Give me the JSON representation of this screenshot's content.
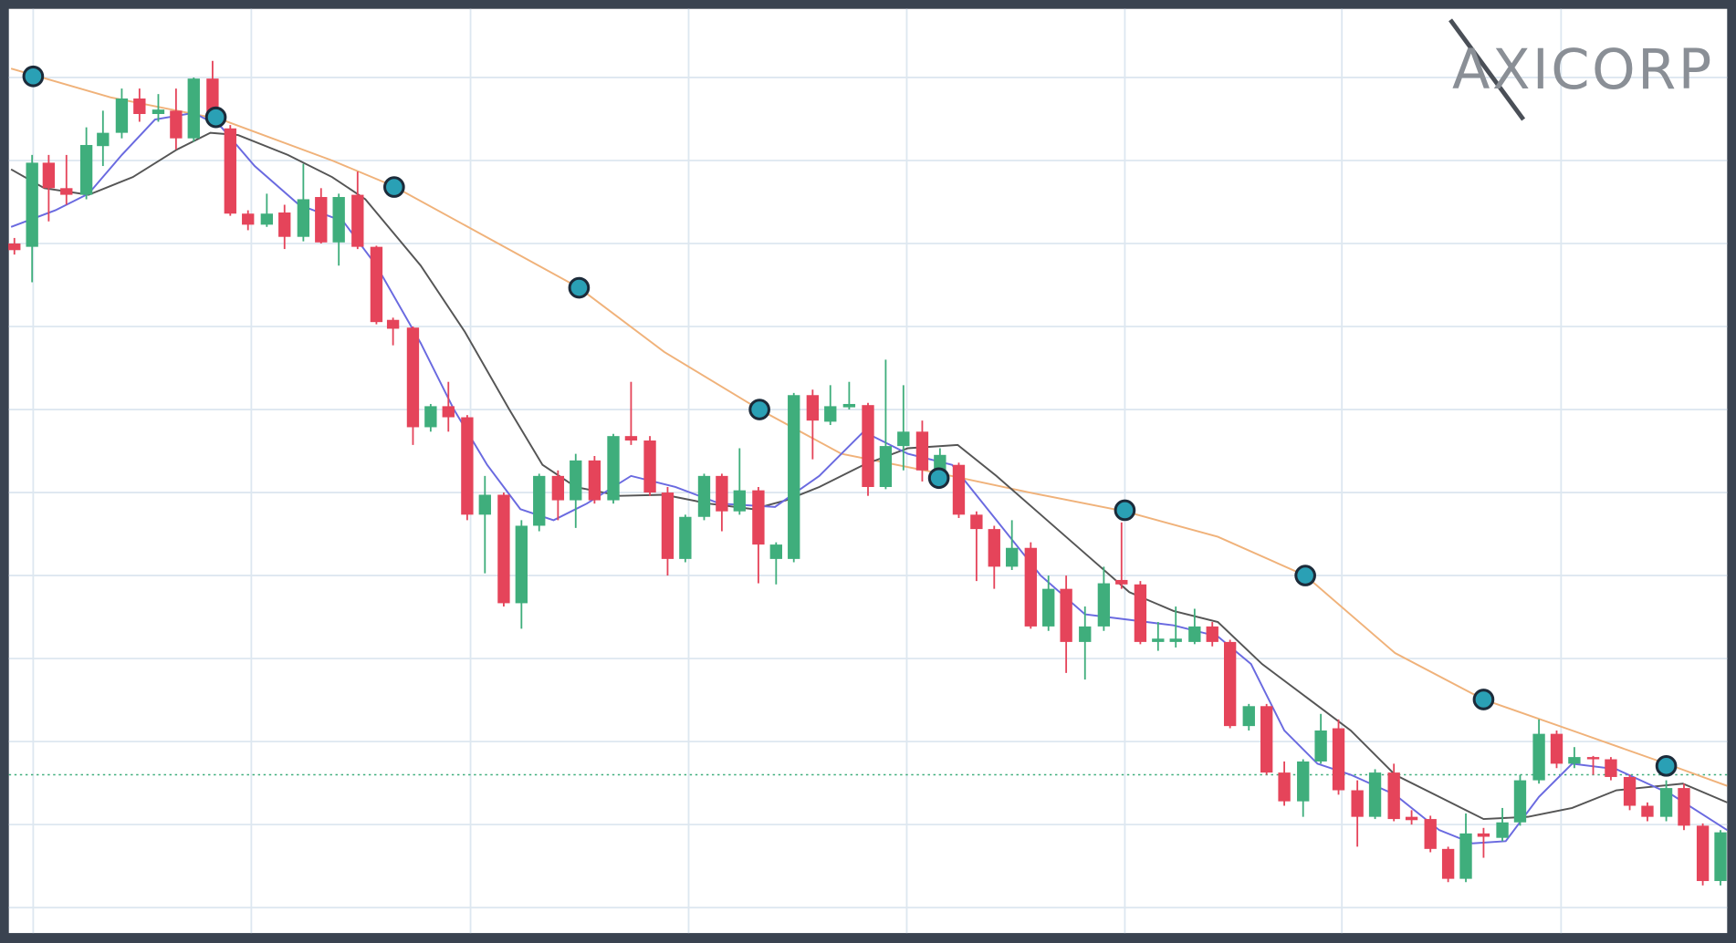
{
  "chart_data": {
    "type": "candlestick",
    "logo": "AXICORP",
    "xlim": [
      0,
      1568
    ],
    "ylim": [
      0,
      852
    ],
    "xticks": [
      30,
      227,
      425,
      622,
      819,
      1016,
      1212,
      1410
    ],
    "yticks": [
      32,
      107,
      182,
      257,
      332,
      407,
      482,
      557,
      632,
      707,
      782
    ],
    "grid": true,
    "up_color": "#3fae7c",
    "down_color": "#e5445a",
    "x": [
      13,
      29,
      44,
      60,
      78,
      93,
      110,
      126,
      143,
      159,
      175,
      192,
      208,
      224,
      241,
      257,
      274,
      290,
      306,
      323,
      340,
      355,
      373,
      389,
      405,
      422,
      438,
      455,
      471,
      487,
      504,
      520,
      537,
      554,
      570,
      587,
      603,
      619,
      636,
      652,
      668,
      685,
      701,
      717,
      734,
      750,
      767,
      784,
      800,
      816,
      833,
      849,
      866,
      882,
      898,
      914,
      931,
      947,
      963,
      980,
      997,
      1013,
      1030,
      1046,
      1062,
      1079,
      1095,
      1111,
      1128,
      1144,
      1160,
      1177,
      1193,
      1209,
      1226,
      1242,
      1259,
      1275,
      1292,
      1308,
      1324,
      1340,
      1357,
      1373,
      1390,
      1406,
      1422,
      1439,
      1455,
      1472,
      1488,
      1505,
      1521,
      1538,
      1554
    ],
    "open": [
      632,
      629,
      705,
      682,
      676,
      720,
      732,
      763,
      749,
      752,
      727,
      781,
      736,
      659,
      649,
      660,
      638,
      674,
      633,
      676,
      629,
      563,
      556,
      466,
      485,
      475,
      387,
      405,
      307,
      377,
      422,
      400,
      436,
      400,
      458,
      454,
      407,
      347,
      385,
      422,
      390,
      409,
      347,
      347,
      495,
      471,
      484,
      486,
      412,
      449,
      462,
      427,
      432,
      387,
      374,
      340,
      357,
      286,
      320,
      272,
      286,
      328,
      324,
      272,
      272,
      272,
      286,
      272,
      196,
      214,
      154,
      128,
      164,
      194,
      138,
      114,
      154,
      114,
      112,
      85,
      58,
      99,
      95,
      109,
      147,
      189,
      162,
      168,
      166,
      150,
      124,
      114,
      140,
      106,
      56
    ],
    "high": [
      637,
      712,
      712,
      712,
      737,
      752,
      772,
      772,
      767,
      772,
      782,
      797,
      739,
      662,
      677,
      667,
      704,
      682,
      677,
      697,
      630,
      565,
      557,
      487,
      507,
      477,
      422,
      407,
      382,
      424,
      427,
      442,
      440,
      460,
      507,
      458,
      412,
      387,
      424,
      424,
      447,
      412,
      362,
      497,
      500,
      504,
      507,
      488,
      527,
      504,
      472,
      447,
      434,
      390,
      377,
      382,
      362,
      332,
      332,
      304,
      340,
      380,
      327,
      290,
      304,
      302,
      290,
      274,
      216,
      216,
      164,
      166,
      207,
      202,
      147,
      157,
      162,
      120,
      115,
      87,
      117,
      104,
      122,
      152,
      202,
      192,
      177,
      169,
      168,
      152,
      127,
      147,
      144,
      108,
      102
    ],
    "low": [
      622,
      597,
      652,
      667,
      672,
      702,
      727,
      742,
      742,
      717,
      724,
      742,
      657,
      644,
      647,
      627,
      634,
      632,
      612,
      627,
      559,
      540,
      450,
      462,
      462,
      382,
      334,
      304,
      284,
      372,
      382,
      375,
      397,
      397,
      450,
      404,
      332,
      344,
      382,
      372,
      387,
      325,
      324,
      344,
      437,
      468,
      482,
      404,
      410,
      427,
      417,
      412,
      384,
      327,
      320,
      337,
      284,
      282,
      244,
      238,
      282,
      320,
      270,
      264,
      267,
      270,
      268,
      194,
      192,
      152,
      124,
      114,
      162,
      134,
      87,
      112,
      110,
      107,
      82,
      55,
      55,
      77,
      92,
      106,
      144,
      158,
      158,
      152,
      147,
      120,
      110,
      110,
      102,
      52,
      52
    ],
    "close": [
      626,
      705,
      682,
      676,
      721,
      732,
      763,
      749,
      753,
      727,
      781,
      747,
      659,
      649,
      659,
      638,
      672,
      633,
      674,
      629,
      561,
      555,
      466,
      485,
      475,
      387,
      405,
      307,
      377,
      422,
      400,
      436,
      400,
      458,
      454,
      407,
      347,
      385,
      422,
      390,
      409,
      360,
      360,
      495,
      472,
      485,
      487,
      412,
      449,
      462,
      427,
      441,
      387,
      374,
      340,
      357,
      286,
      320,
      272,
      286,
      325,
      324,
      272,
      275,
      275,
      286,
      272,
      196,
      214,
      154,
      128,
      164,
      192,
      138,
      114,
      154,
      112,
      111,
      85,
      58,
      99,
      96,
      109,
      147,
      189,
      162,
      168,
      166,
      150,
      124,
      114,
      140,
      106,
      56,
      100
    ],
    "lines": [
      {
        "color": "#f0b27a",
        "x": [
          10,
          100,
          200,
          300,
          355,
          450,
          523,
          600,
          686,
          760,
          850,
          930,
          1016,
          1100,
          1179,
          1260,
          1340,
          1420,
          1505,
          1560
        ],
        "values": [
          790,
          764,
          744,
          707,
          684,
          632,
          592,
          534,
          482,
          442,
          424,
          407,
          390,
          367,
          332,
          262,
          220,
          192,
          162,
          142
        ]
      },
      {
        "color": "#555555",
        "x": [
          10,
          40,
          80,
          120,
          160,
          190,
          215,
          260,
          300,
          330,
          380,
          420,
          460,
          490,
          520,
          560,
          600,
          640,
          680,
          710,
          740,
          780,
          820,
          865,
          900,
          940,
          980,
          1020,
          1060,
          1100,
          1140,
          1180,
          1220,
          1260,
          1300,
          1340,
          1380,
          1420,
          1460,
          1520,
          1560
        ],
        "values": [
          699,
          682,
          676,
          692,
          717,
          732,
          730,
          712,
          692,
          672,
          612,
          552,
          482,
          432,
          412,
          404,
          405,
          397,
          392,
          400,
          412,
          432,
          447,
          450,
          422,
          387,
          352,
          317,
          300,
          290,
          252,
          222,
          192,
          152,
          132,
          112,
          114,
          122,
          138,
          144,
          127
        ]
      },
      {
        "color": "#6a6ae0",
        "x": [
          10,
          50,
          80,
          110,
          140,
          175,
          200,
          230,
          270,
          310,
          340,
          380,
          410,
          440,
          470,
          500,
          530,
          570,
          610,
          650,
          700,
          740,
          780,
          820,
          860,
          900,
          940,
          980,
          1020,
          1060,
          1100,
          1130,
          1160,
          1190,
          1220,
          1260,
          1300,
          1330,
          1360,
          1390,
          1420,
          1460,
          1510,
          1560
        ],
        "values": [
          647,
          662,
          677,
          712,
          744,
          750,
          737,
          702,
          667,
          652,
          612,
          542,
          482,
          432,
          392,
          382,
          397,
          422,
          412,
          397,
          394,
          422,
          462,
          442,
          432,
          382,
          332,
          297,
          292,
          287,
          277,
          252,
          192,
          162,
          152,
          134,
          102,
          90,
          92,
          132,
          162,
          157,
          134,
          102
        ]
      }
    ],
    "markers": {
      "color": "#2aa0b5",
      "x": [
        30,
        195,
        356,
        523,
        686,
        848,
        1016,
        1179,
        1340,
        1505
      ],
      "values": [
        783,
        746,
        683,
        592,
        482,
        420,
        391,
        332,
        220,
        160
      ]
    },
    "reference_line": {
      "value": 152,
      "color": "#3fae7c"
    }
  }
}
